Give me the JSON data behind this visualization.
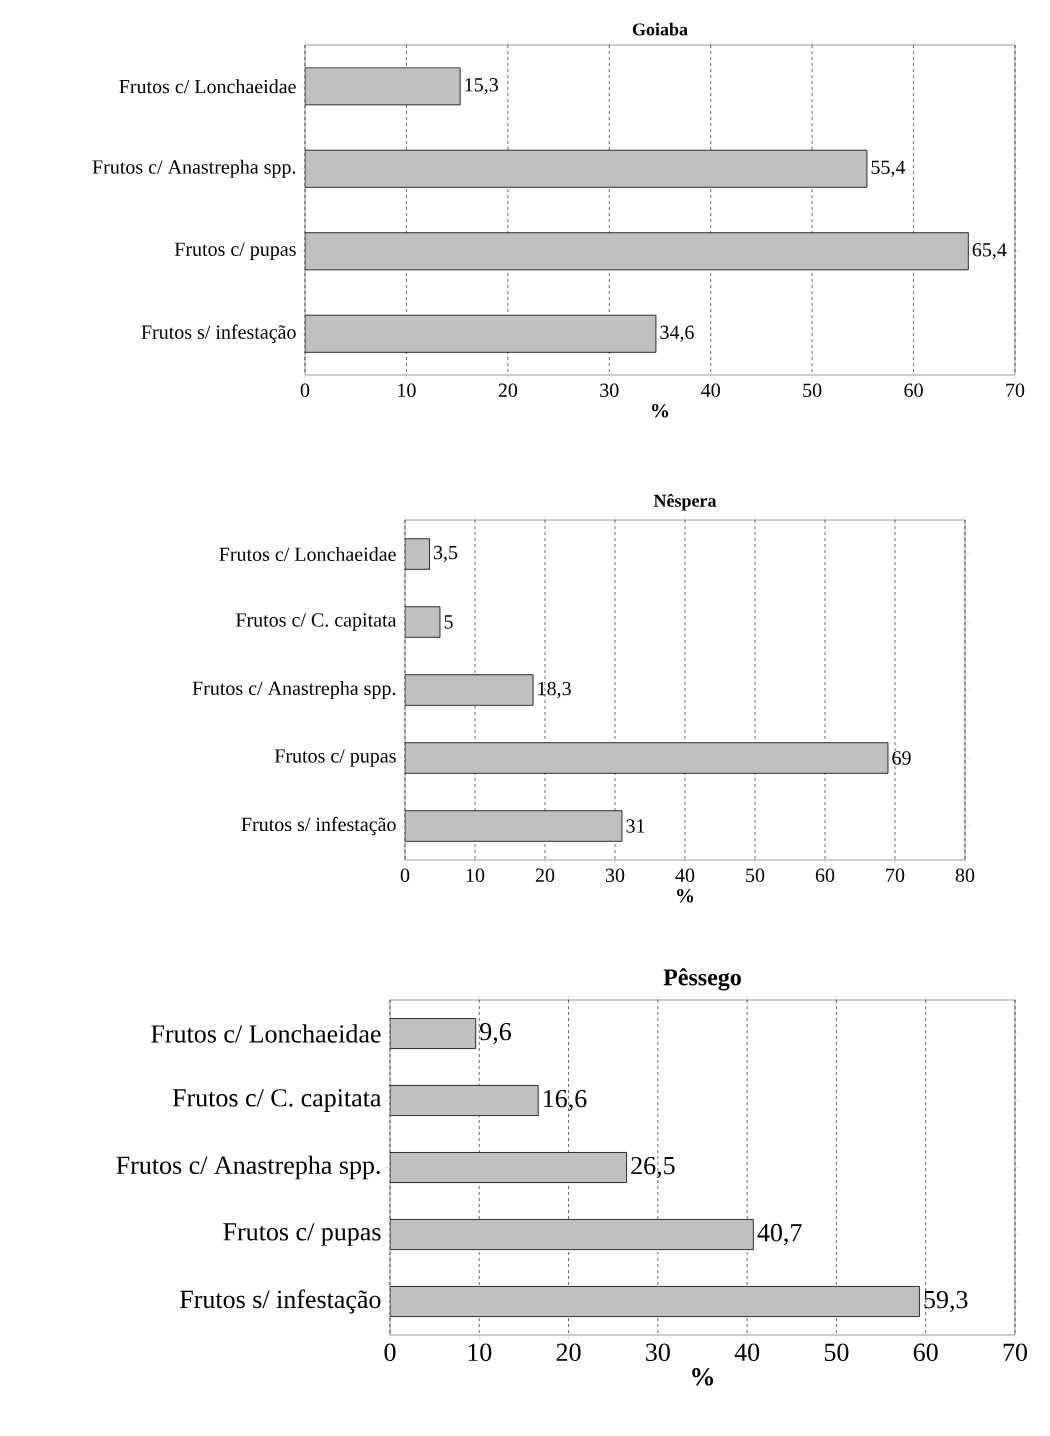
{
  "chart_data": [
    {
      "type": "bar",
      "orientation": "horizontal",
      "title": "Goiaba",
      "xlabel": "%",
      "categories": [
        "Frutos c/ Lonchaeidae",
        "Frutos c/ Anastrepha spp.",
        "Frutos c/ pupas",
        "Frutos s/ infestação"
      ],
      "values": [
        15.3,
        55.4,
        65.4,
        34.6
      ],
      "value_labels": [
        "15,3",
        "55,4",
        "65,4",
        "34,6"
      ],
      "color": "#c0c0c0",
      "xlim": [
        0,
        70
      ],
      "xticks": [
        0,
        10,
        20,
        30,
        40,
        50,
        60,
        70
      ],
      "grid": "x"
    },
    {
      "type": "bar",
      "orientation": "horizontal",
      "title": "Nêspera",
      "xlabel": "%",
      "categories": [
        "Frutos c/ Lonchaeidae",
        "Frutos c/ C. capitata",
        "Frutos c/ Anastrepha spp.",
        "Frutos c/ pupas",
        "Frutos s/ infestação"
      ],
      "values": [
        3.5,
        5,
        18.3,
        69,
        31
      ],
      "value_labels": [
        "3,5",
        "5",
        "18,3",
        "69",
        "31"
      ],
      "color": "#c0c0c0",
      "xlim": [
        0,
        80
      ],
      "xticks": [
        0,
        10,
        20,
        30,
        40,
        50,
        60,
        70,
        80
      ],
      "grid": "x"
    },
    {
      "type": "bar",
      "orientation": "horizontal",
      "title": "Pêssego",
      "xlabel": "%",
      "categories": [
        "Frutos c/ Lonchaeidae",
        "Frutos c/ C. capitata",
        "Frutos c/ Anastrepha spp.",
        "Frutos c/ pupas",
        "Frutos s/ infestação"
      ],
      "values": [
        9.6,
        16.6,
        26.5,
        40.7,
        59.3
      ],
      "value_labels": [
        "9,6",
        "16,6",
        "26,5",
        "40,7",
        "59,3"
      ],
      "color": "#c0c0c0",
      "xlim": [
        0,
        70
      ],
      "xticks": [
        0,
        10,
        20,
        30,
        40,
        50,
        60,
        70
      ],
      "grid": "x"
    }
  ]
}
